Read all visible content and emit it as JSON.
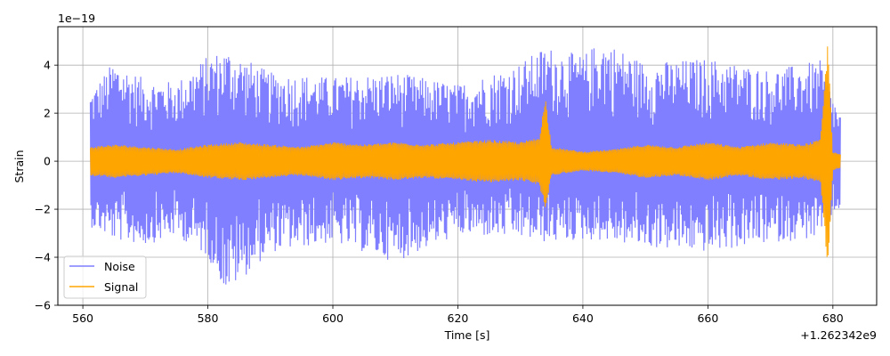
{
  "chart_data": {
    "type": "line",
    "xlabel": "Time [s]",
    "ylabel": "Strain",
    "y_scale_label": "1e−19",
    "x_offset_label": "+1.262342e9",
    "xlim": [
      556,
      687
    ],
    "ylim": [
      -6.0,
      5.6
    ],
    "x_ticks": [
      560,
      580,
      600,
      620,
      640,
      660,
      680
    ],
    "y_ticks": [
      -6,
      -4,
      -2,
      0,
      2,
      4
    ],
    "grid": true,
    "legend_placement": "lower-left",
    "series": [
      {
        "name": "Noise",
        "color": "#7f7fff",
        "x_range": [
          561.2,
          681.2
        ],
        "envelope": {
          "x": [
            561,
            565,
            570,
            575,
            580,
            583,
            590,
            600,
            610,
            620,
            630,
            634,
            640,
            643,
            650,
            660,
            670,
            678,
            681
          ],
          "upper": [
            2.8,
            4.2,
            3.4,
            3.3,
            4.4,
            4.7,
            3.7,
            3.5,
            3.7,
            3.2,
            4.1,
            4.8,
            4.4,
            5.1,
            4.1,
            4.3,
            3.8,
            4.2,
            2.0
          ],
          "lower": [
            -2.7,
            -3.3,
            -3.5,
            -3.1,
            -4.0,
            -5.5,
            -3.8,
            -3.4,
            -4.2,
            -3.1,
            -3.2,
            -3.4,
            -3.3,
            -3.3,
            -3.6,
            -3.8,
            -3.4,
            -3.2,
            -2.0
          ]
        }
      },
      {
        "name": "Signal",
        "color": "#ffa500",
        "x_range": [
          561.2,
          681.2
        ],
        "envelope": {
          "x": [
            561,
            565,
            570,
            575,
            580,
            585,
            590,
            595,
            600,
            605,
            610,
            615,
            620,
            625,
            630,
            633,
            634,
            635,
            640,
            645,
            650,
            655,
            660,
            665,
            670,
            675,
            678,
            679.2,
            680,
            681
          ],
          "upper": [
            0.6,
            0.7,
            0.6,
            0.5,
            0.7,
            0.8,
            0.7,
            0.6,
            0.8,
            0.7,
            0.8,
            0.7,
            0.8,
            0.9,
            0.8,
            1.0,
            2.7,
            0.6,
            0.4,
            0.5,
            0.7,
            0.6,
            0.8,
            0.6,
            0.8,
            0.7,
            0.9,
            5.1,
            0.4,
            0.3
          ],
          "lower": [
            -0.6,
            -0.7,
            -0.6,
            -0.5,
            -0.7,
            -0.8,
            -0.7,
            -0.6,
            -0.8,
            -0.7,
            -0.8,
            -0.7,
            -0.8,
            -0.9,
            -0.8,
            -1.0,
            -2.0,
            -0.6,
            -0.4,
            -0.5,
            -0.7,
            -0.6,
            -0.8,
            -0.6,
            -0.8,
            -0.7,
            -0.9,
            -4.5,
            -0.4,
            -0.3
          ]
        }
      }
    ]
  }
}
